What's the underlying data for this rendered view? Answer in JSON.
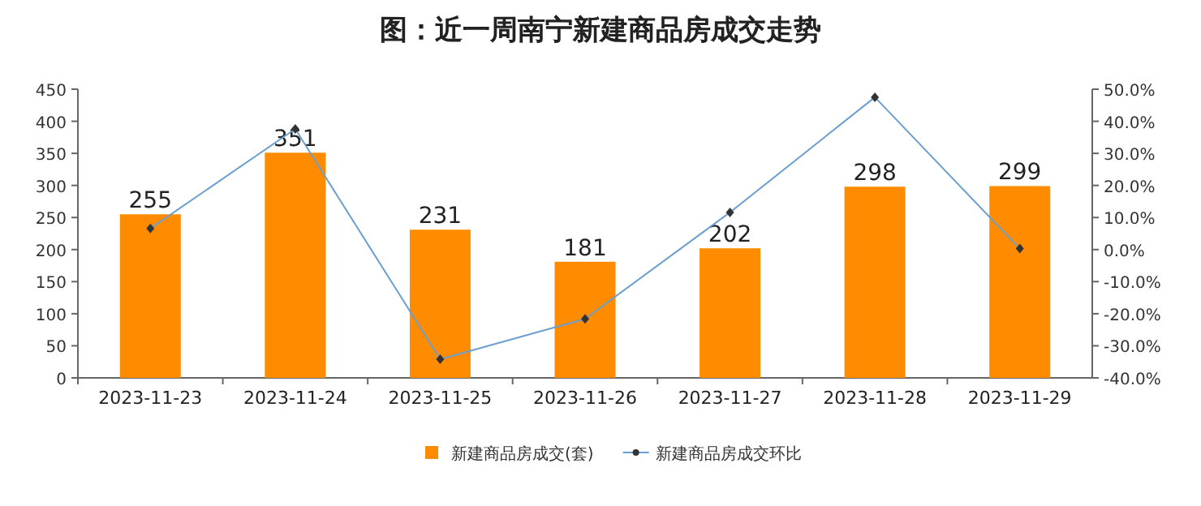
{
  "chart_data": {
    "type": "bar",
    "title": "图：近一周南宁新建商品房成交走势",
    "categories": [
      "2023-11-23",
      "2023-11-24",
      "2023-11-25",
      "2023-11-26",
      "2023-11-27",
      "2023-11-28",
      "2023-11-29"
    ],
    "series": [
      {
        "name": "新建商品房成交(套)",
        "color": "#ff8c00",
        "values": [
          255,
          351,
          231,
          181,
          202,
          298,
          299
        ],
        "value_labels": [
          "255",
          "351",
          "231",
          "181",
          "202",
          "298",
          "299"
        ]
      },
      {
        "name": "新建商品房成交环比",
        "type": "line",
        "axis": "y2",
        "color": "#6a9fd0",
        "marker": "diamond",
        "values": [
          6.6,
          37.6,
          -34.2,
          -21.6,
          11.6,
          47.5,
          0.3
        ]
      }
    ],
    "ylim": [
      0,
      450
    ],
    "yticks": [
      0,
      50,
      100,
      150,
      200,
      250,
      300,
      350,
      400,
      450
    ],
    "y2lim": [
      -40,
      50
    ],
    "y2ticks": [
      {
        "value": -40,
        "label": "-40.0%"
      },
      {
        "value": -30,
        "label": "-30.0%"
      },
      {
        "value": -20,
        "label": "-20.0%"
      },
      {
        "value": -10,
        "label": "-10.0%"
      },
      {
        "value": 0,
        "label": "0.0%"
      },
      {
        "value": 10,
        "label": "10.0%"
      },
      {
        "value": 20,
        "label": "20.0%"
      },
      {
        "value": 30,
        "label": "30.0%"
      },
      {
        "value": 40,
        "label": "40.0%"
      },
      {
        "value": 50,
        "label": "50.0%"
      }
    ],
    "legend": "bottom"
  }
}
